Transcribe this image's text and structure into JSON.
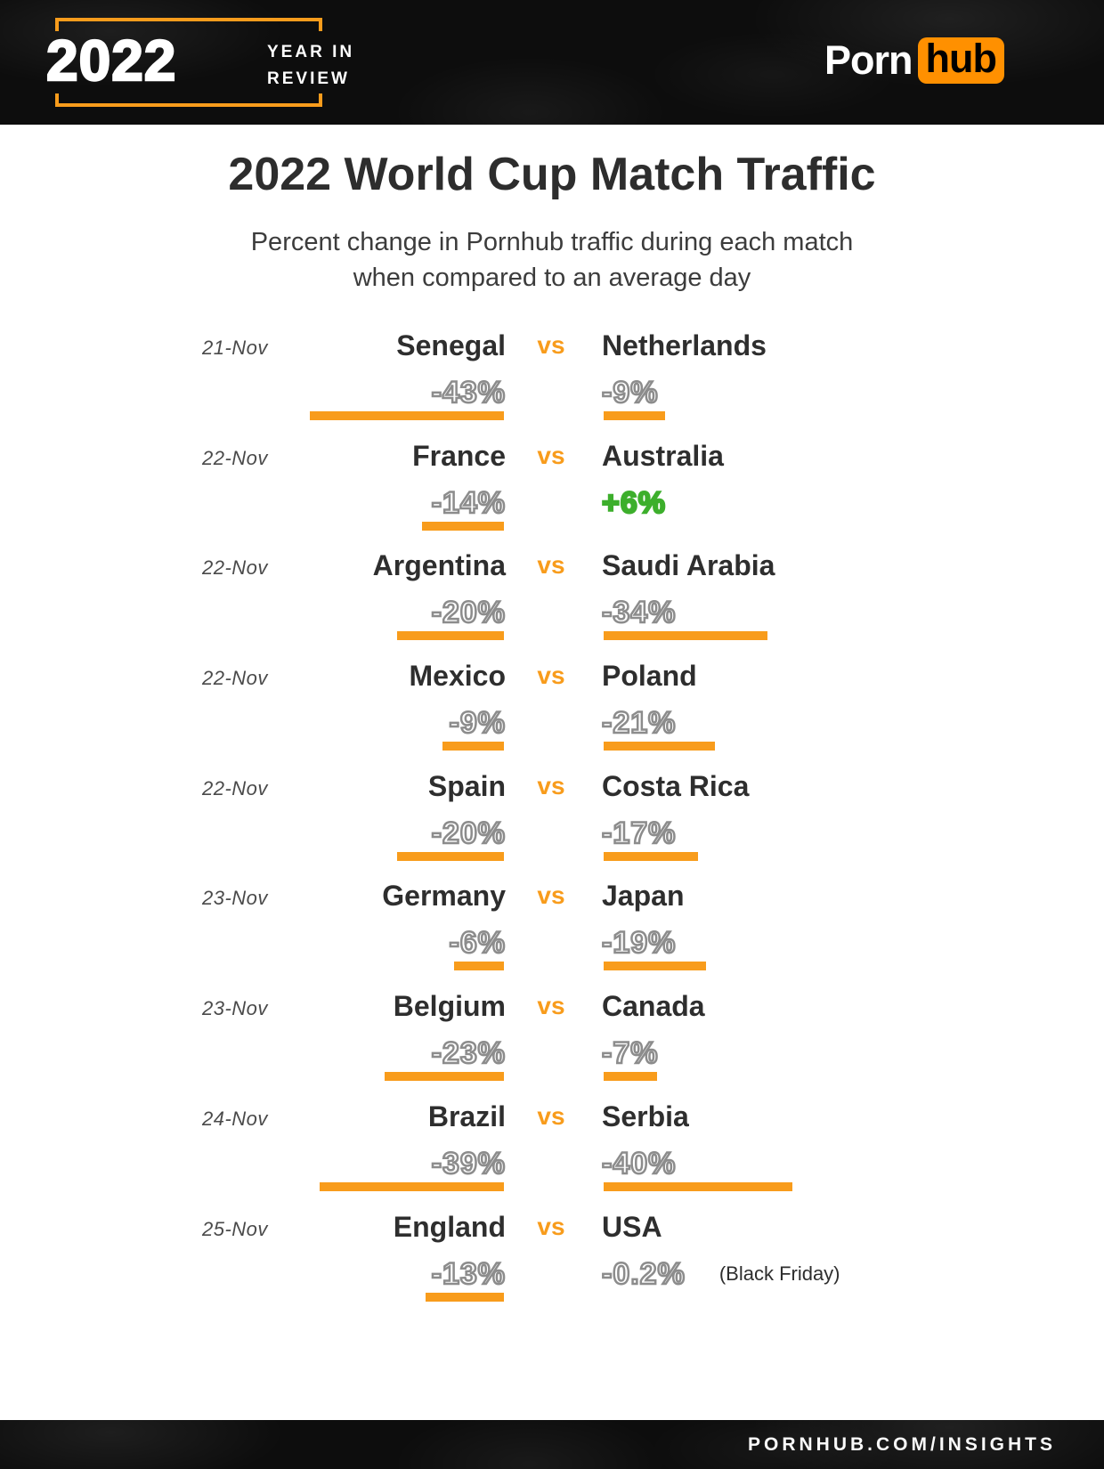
{
  "header": {
    "year_badge": {
      "year": "2022",
      "tagline_line1": "YEAR IN",
      "tagline_line2": "REVIEW"
    },
    "brand": {
      "word1": "Porn",
      "word2": "hub"
    }
  },
  "main": {
    "title": "2022 World Cup Match Traffic",
    "subtitle_line1": "Percent change in Pornhub traffic during each match",
    "subtitle_line2": "when compared to an average day",
    "vs_label": "vs"
  },
  "footer": {
    "url": "PORNHUB.COM/INSIGHTS"
  },
  "colors": {
    "accent_orange": "#F89C1C",
    "logo_orange": "#FF9000",
    "positive_green": "#3DAF2C",
    "outline_gray": "#8C8C8C"
  },
  "chart_data": {
    "type": "bar",
    "title": "2022 World Cup Match Traffic",
    "subtitle": "Percent change in Pornhub traffic during each match when compared to an average day",
    "unit": "percent change in traffic vs average day",
    "bar_style": "orange underline, length proportional to magnitude",
    "matches": [
      {
        "date": "21-Nov",
        "team1": "Senegal",
        "value1": -43,
        "label1": "-43%",
        "team2": "Netherlands",
        "value2": -9,
        "label2": "-9%"
      },
      {
        "date": "22-Nov",
        "team1": "France",
        "value1": -14,
        "label1": "-14%",
        "team2": "Australia",
        "value2": 6,
        "label2": "+6%"
      },
      {
        "date": "22-Nov",
        "team1": "Argentina",
        "value1": -20,
        "label1": "-20%",
        "team2": "Saudi Arabia",
        "value2": -34,
        "label2": "-34%"
      },
      {
        "date": "22-Nov",
        "team1": "Mexico",
        "value1": -9,
        "label1": "-9%",
        "team2": "Poland",
        "value2": -21,
        "label2": "-21%"
      },
      {
        "date": "22-Nov",
        "team1": "Spain",
        "value1": -20,
        "label1": "-20%",
        "team2": "Costa Rica",
        "value2": -17,
        "label2": "-17%"
      },
      {
        "date": "23-Nov",
        "team1": "Germany",
        "value1": -6,
        "label1": "-6%",
        "team2": "Japan",
        "value2": -19,
        "label2": "-19%"
      },
      {
        "date": "23-Nov",
        "team1": "Belgium",
        "value1": -23,
        "label1": "-23%",
        "team2": "Canada",
        "value2": -7,
        "label2": "-7%"
      },
      {
        "date": "24-Nov",
        "team1": "Brazil",
        "value1": -39,
        "label1": "-39%",
        "team2": "Serbia",
        "value2": -40,
        "label2": "-40%"
      },
      {
        "date": "25-Nov",
        "team1": "England",
        "value1": -13,
        "label1": "-13%",
        "team2": "USA",
        "value2": -0.2,
        "label2": "-0.2%",
        "note2": "(Black Friday)"
      }
    ]
  }
}
